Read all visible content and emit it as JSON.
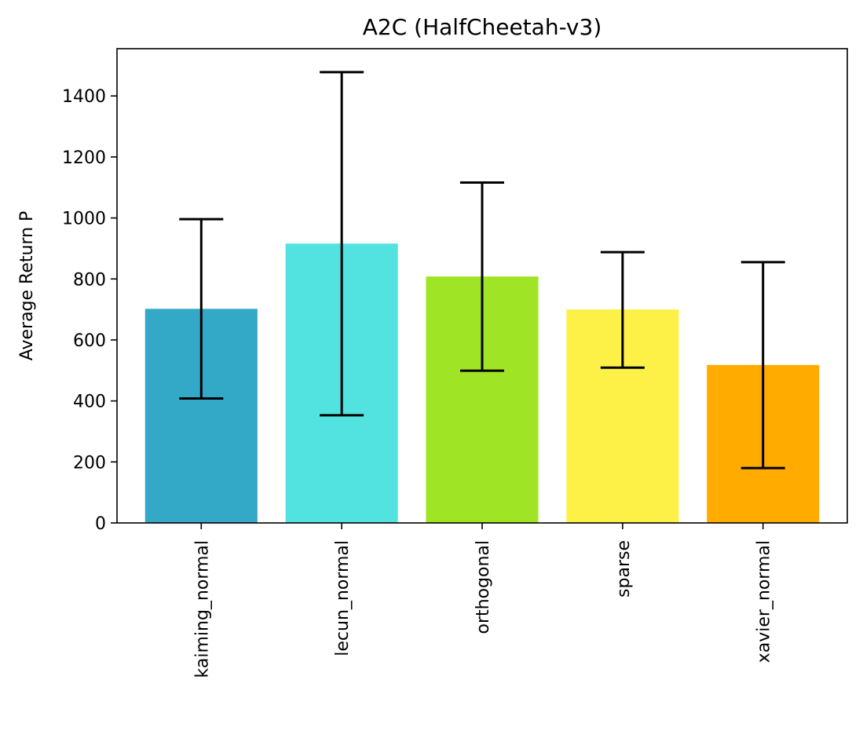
{
  "chart_data": {
    "type": "bar",
    "title": "A2C (HalfCheetah-v3)",
    "xlabel": "",
    "ylabel": "Average Return P",
    "categories": [
      "kaiming_normal",
      "lecun_normal",
      "orthogonal",
      "sparse",
      "xavier_normal"
    ],
    "values": [
      702,
      916,
      808,
      700,
      518
    ],
    "error_low": [
      408,
      353,
      499,
      509,
      180
    ],
    "error_high": [
      996,
      1478,
      1116,
      888,
      855
    ],
    "colors": [
      "#33a8c7",
      "#52e3e1",
      "#a0e426",
      "#fdf148",
      "#ffab00"
    ],
    "ylim": [
      0,
      1555
    ],
    "yticks": [
      0,
      200,
      400,
      600,
      800,
      1000,
      1200,
      1400
    ],
    "grid": false,
    "legend": "none"
  }
}
